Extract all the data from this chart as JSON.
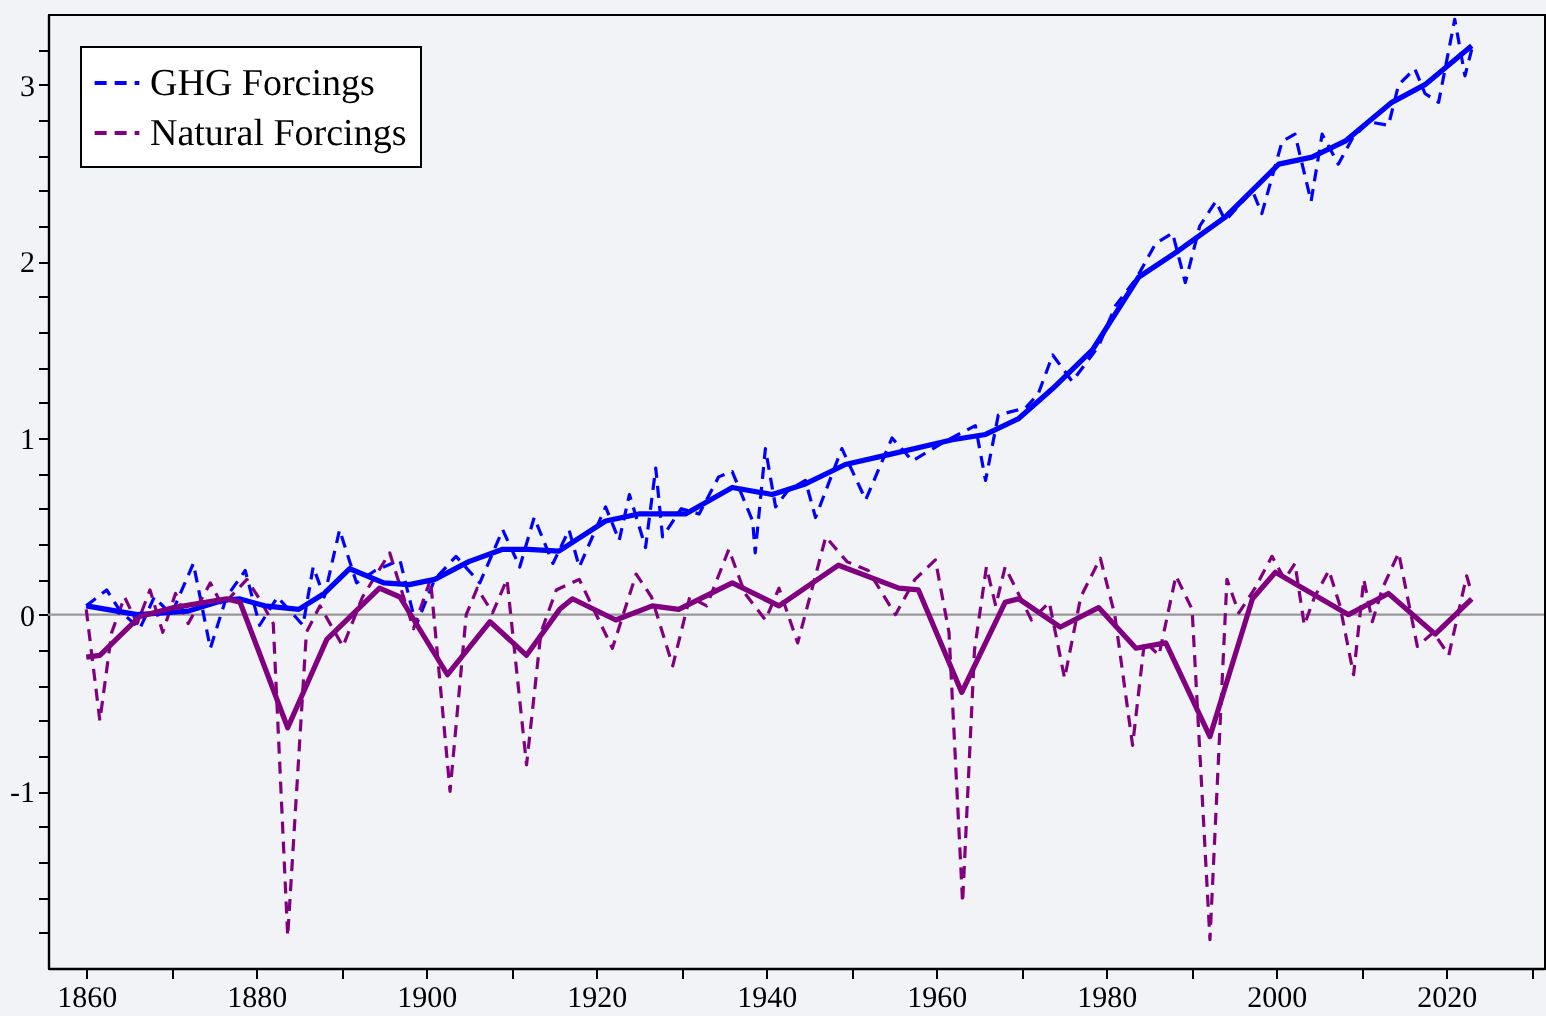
{
  "chart_data": {
    "type": "line",
    "xlim": [
      1855.5,
      2031.5
    ],
    "xticks": [
      1860,
      {
        "value": 1870,
        "label": null
      },
      1880,
      {
        "value": 1890,
        "label": null
      },
      1900,
      {
        "value": 1910,
        "label": null
      },
      1920,
      {
        "value": 1930,
        "label": null
      },
      1940,
      {
        "value": 1950,
        "label": null
      },
      1960,
      {
        "value": 1970,
        "label": null
      },
      1980,
      {
        "value": 1990,
        "label": null
      },
      2000,
      {
        "value": 2010,
        "label": null
      },
      2020,
      {
        "value": 2030,
        "label": null
      }
    ],
    "ylim": [
      -2,
      3.4
    ],
    "yticks": [
      {
        "value": -1.8,
        "label": null
      },
      {
        "value": -1.6,
        "label": null
      },
      {
        "value": -1.4,
        "label": null
      },
      {
        "value": -1.2,
        "label": null
      },
      -1,
      {
        "value": -0.8,
        "label": null
      },
      {
        "value": -0.6,
        "label": null
      },
      {
        "value": -0.4,
        "label": null
      },
      {
        "value": -0.2,
        "label": null
      },
      0,
      {
        "value": 0.2,
        "label": null
      },
      {
        "value": 0.4,
        "label": null
      },
      {
        "value": 0.6,
        "label": null
      },
      {
        "value": 0.8,
        "label": null
      },
      1,
      {
        "value": 1.2,
        "label": null
      },
      {
        "value": 1.4,
        "label": null
      },
      {
        "value": 1.6,
        "label": null
      },
      {
        "value": 1.8,
        "label": null
      },
      2,
      {
        "value": 2.2,
        "label": null
      },
      {
        "value": 2.4,
        "label": null
      },
      {
        "value": 2.6,
        "label": null
      },
      {
        "value": 2.8,
        "label": null
      },
      3,
      {
        "value": 3.2,
        "label": null
      }
    ],
    "legend": "top left",
    "ref_lines": [
      {
        "axis": "y",
        "value": 0,
        "color": "#999999"
      }
    ],
    "series": [
      {
        "name": "GHG Forcings",
        "color": "#0000ff",
        "line_style": "dashed",
        "x": [
          1860,
          1862.4,
          1864,
          1866.3,
          1868,
          1870,
          1872.6,
          1874.6,
          1876.5,
          1878.7,
          1880.4,
          1882.5,
          1885.5,
          1886.7,
          1888,
          1889.8,
          1891.8,
          1894,
          1896.9,
          1898.8,
          1901,
          1903.5,
          1906.3,
          1909,
          1911,
          1912.7,
          1914.9,
          1916.8,
          1918,
          1921.1,
          1922.7,
          1923.9,
          1925.8,
          1927,
          1927.8,
          1930,
          1932.1,
          1934.4,
          1936,
          1938.4,
          1938.7,
          1939.9,
          1941.1,
          1942.5,
          1944.6,
          1945.8,
          1948.9,
          1951.7,
          1954.8,
          1957.2,
          1961,
          1964.6,
          1965.8,
          1967.3,
          1970.5,
          1972,
          1973.7,
          1976,
          1979.1,
          1981.1,
          1983.5,
          1985.8,
          1987.8,
          1989.3,
          1991,
          1992.9,
          1994,
          1997.2,
          1998.3,
          2000.7,
          2002.2,
          2004.1,
          2005.4,
          2007.3,
          2009,
          2010.9,
          2013.2,
          2014.4,
          2016.3,
          2017.5,
          2019.1,
          2021,
          2022.2,
          2023
        ],
        "values": [
          0.05,
          0.14,
          0.02,
          -0.08,
          0.1,
          0.0,
          0.29,
          -0.19,
          0.1,
          0.25,
          -0.06,
          0.1,
          -0.06,
          0.27,
          0.1,
          0.48,
          0.18,
          0.25,
          0.31,
          -0.06,
          0.2,
          0.33,
          0.18,
          0.48,
          0.27,
          0.55,
          0.29,
          0.48,
          0.27,
          0.61,
          0.42,
          0.68,
          0.38,
          0.83,
          0.44,
          0.6,
          0.57,
          0.78,
          0.81,
          0.53,
          0.35,
          0.94,
          0.61,
          0.7,
          0.76,
          0.55,
          0.94,
          0.65,
          1.0,
          0.87,
          0.98,
          1.07,
          0.76,
          1.13,
          1.17,
          1.25,
          1.47,
          1.32,
          1.52,
          1.75,
          1.9,
          2.1,
          2.16,
          1.88,
          2.2,
          2.34,
          2.23,
          2.4,
          2.27,
          2.68,
          2.72,
          2.34,
          2.72,
          2.55,
          2.7,
          2.79,
          2.77,
          3.0,
          3.09,
          2.95,
          2.9,
          3.37,
          3.05,
          3.2
        ]
      },
      {
        "name": "Natural Forcings",
        "color": "#800080",
        "line_style": "dashed",
        "x": [
          1860,
          1861.6,
          1863,
          1864.5,
          1866,
          1867.5,
          1869,
          1870.5,
          1872,
          1874.6,
          1876,
          1878.9,
          1880.5,
          1882,
          1883.7,
          1885.9,
          1887.5,
          1890.2,
          1892.5,
          1895.7,
          1898.5,
          1900.5,
          1902.8,
          1904.7,
          1906,
          1907.8,
          1909.5,
          1911.8,
          1913.5,
          1915.3,
          1918,
          1921.9,
          1924.7,
          1926.5,
          1929,
          1931,
          1933,
          1935.6,
          1937.5,
          1939.9,
          1941.5,
          1943.7,
          1947,
          1949.5,
          1952,
          1955.2,
          1957.5,
          1959.9,
          1961.5,
          1963.1,
          1964.5,
          1965.9,
          1967,
          1968.1,
          1971.2,
          1973.3,
          1975.1,
          1977,
          1979.3,
          1981,
          1983.1,
          1984.5,
          1986.2,
          1988.2,
          1990.1,
          1992.2,
          1994.2,
          1995.6,
          1997.5,
          1999.5,
          2001,
          2002.2,
          2003.3,
          2004.5,
          2006.2,
          2007.5,
          2009.1,
          2010.3,
          2011.3,
          2012.5,
          2014.4,
          2016.6,
          2018.5,
          2020.3,
          2022.4,
          2023
        ],
        "values": [
          0.03,
          -0.6,
          -0.1,
          0.1,
          -0.05,
          0.14,
          -0.1,
          0.12,
          -0.05,
          0.18,
          0.05,
          0.2,
          0.08,
          -0.05,
          -1.82,
          -0.1,
          0.05,
          -0.18,
          0.1,
          0.35,
          -0.08,
          0.2,
          -1.0,
          0,
          0.15,
          0.01,
          0.2,
          -0.85,
          -0.1,
          0.14,
          0.2,
          -0.19,
          0.23,
          0.1,
          -0.29,
          0.1,
          0.05,
          0.37,
          0.12,
          -0.03,
          0.15,
          -0.16,
          0.44,
          0.3,
          0.25,
          0,
          0.2,
          0.31,
          -0.1,
          -1.63,
          -0.2,
          0.27,
          0.05,
          0.27,
          -0.03,
          0.07,
          -0.36,
          0.1,
          0.32,
          0,
          -0.74,
          -0.15,
          -0.23,
          0.22,
          0.03,
          -1.84,
          0.2,
          0.01,
          0.15,
          0.33,
          0.2,
          0.29,
          -0.06,
          0.1,
          0.25,
          0.05,
          -0.34,
          0.2,
          -0.04,
          0.15,
          0.35,
          -0.18,
          -0.1,
          -0.23,
          0.22,
          0.12
        ]
      },
      {
        "color": "#0000ff",
        "line_style": "solid",
        "x": [
          1860,
          1866,
          1872,
          1876,
          1878,
          1881,
          1885,
          1888,
          1891,
          1895,
          1898,
          1901,
          1905,
          1909,
          1912,
          1915.6,
          1921.1,
          1925,
          1930.5,
          1936,
          1940.7,
          1944.6,
          1949.3,
          1954.8,
          1961.9,
          1965.8,
          1969.7,
          1973.7,
          1978.4,
          1983.8,
          1988.5,
          1994,
          2000.3,
          2004.2,
          2008.1,
          2013.6,
          2017.5,
          2023
        ],
        "values": [
          0.05,
          0.0,
          0.02,
          0.08,
          0.09,
          0.05,
          0.03,
          0.12,
          0.26,
          0.18,
          0.17,
          0.2,
          0.3,
          0.37,
          0.37,
          0.36,
          0.53,
          0.57,
          0.57,
          0.72,
          0.68,
          0.74,
          0.85,
          0.91,
          0.99,
          1.02,
          1.11,
          1.28,
          1.5,
          1.91,
          2.06,
          2.25,
          2.55,
          2.59,
          2.68,
          2.9,
          3.0,
          3.22
        ]
      },
      {
        "color": "#800080",
        "line_style": "solid",
        "x": [
          1860,
          1861.6,
          1866.3,
          1870.3,
          1876.5,
          1878.1,
          1883.7,
          1888.3,
          1894.5,
          1896.9,
          1902.5,
          1907.5,
          1911.8,
          1915.7,
          1917.2,
          1922.3,
          1926.6,
          1929.7,
          1936,
          1941.5,
          1948.5,
          1955.6,
          1957.9,
          1963,
          1968.1,
          1969.7,
          1974.6,
          1979.1,
          1983.5,
          1987,
          1992.2,
          1997.2,
          1999.9,
          2004.2,
          2008.5,
          2013.2,
          2018.7,
          2023
        ],
        "values": [
          -0.24,
          -0.23,
          -0.01,
          0.04,
          0.09,
          0.07,
          -0.64,
          -0.14,
          0.15,
          0.1,
          -0.34,
          -0.04,
          -0.23,
          0.03,
          0.09,
          -0.03,
          0.05,
          0.03,
          0.18,
          0.05,
          0.28,
          0.15,
          0.14,
          -0.44,
          0.07,
          0.09,
          -0.07,
          0.04,
          -0.19,
          -0.16,
          -0.69,
          0.09,
          0.24,
          0.12,
          0,
          0.12,
          -0.11,
          0.09
        ]
      }
    ]
  }
}
